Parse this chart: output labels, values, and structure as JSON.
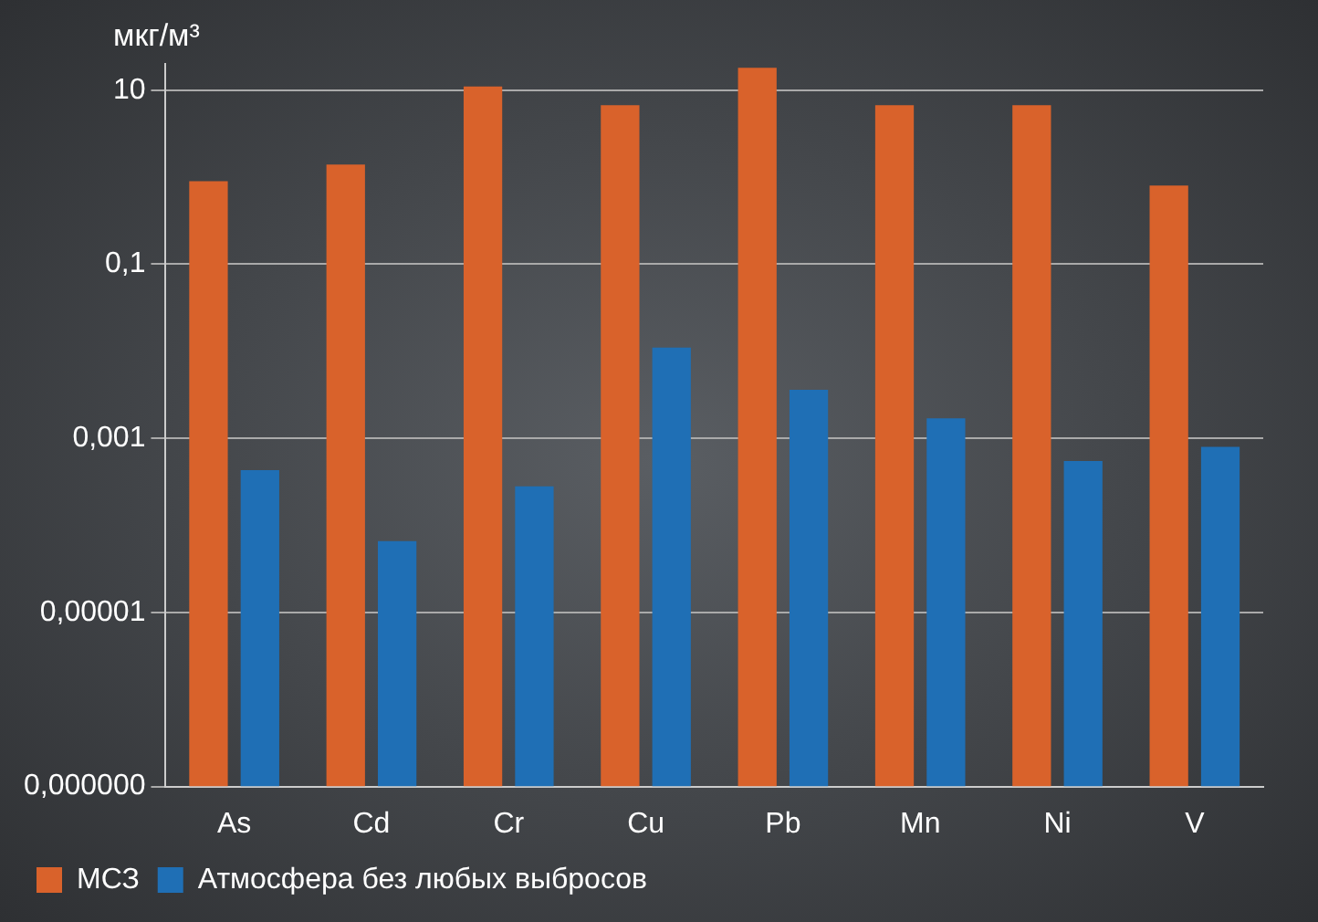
{
  "chart_data": {
    "type": "bar",
    "ylabel": "мкг/м³",
    "categories": [
      "As",
      "Cd",
      "Cr",
      "Cu",
      "Pb",
      "Mn",
      "Ni",
      "V"
    ],
    "series": [
      {
        "name": "МСЗ",
        "color": "#d9622b",
        "values": [
          0.9,
          1.4,
          11,
          6.7,
          18,
          6.7,
          6.7,
          0.8
        ]
      },
      {
        "name": "Атмосфера без любых выбросов",
        "color": "#1f6fb5",
        "values": [
          0.00043,
          6.6e-05,
          0.00028,
          0.011,
          0.0036,
          0.0017,
          0.00055,
          0.0008
        ]
      }
    ],
    "log": true,
    "ylim": [
      1e-07,
      20
    ],
    "yticks": [
      {
        "value": 1e-07,
        "label": "0,000000"
      },
      {
        "value": 1e-05,
        "label": "0,00001"
      },
      {
        "value": 0.001,
        "label": "0,001"
      },
      {
        "value": 0.1,
        "label": "0,1"
      },
      {
        "value": 10,
        "label": "10"
      }
    ],
    "grid": "y",
    "legend": "bottom"
  }
}
